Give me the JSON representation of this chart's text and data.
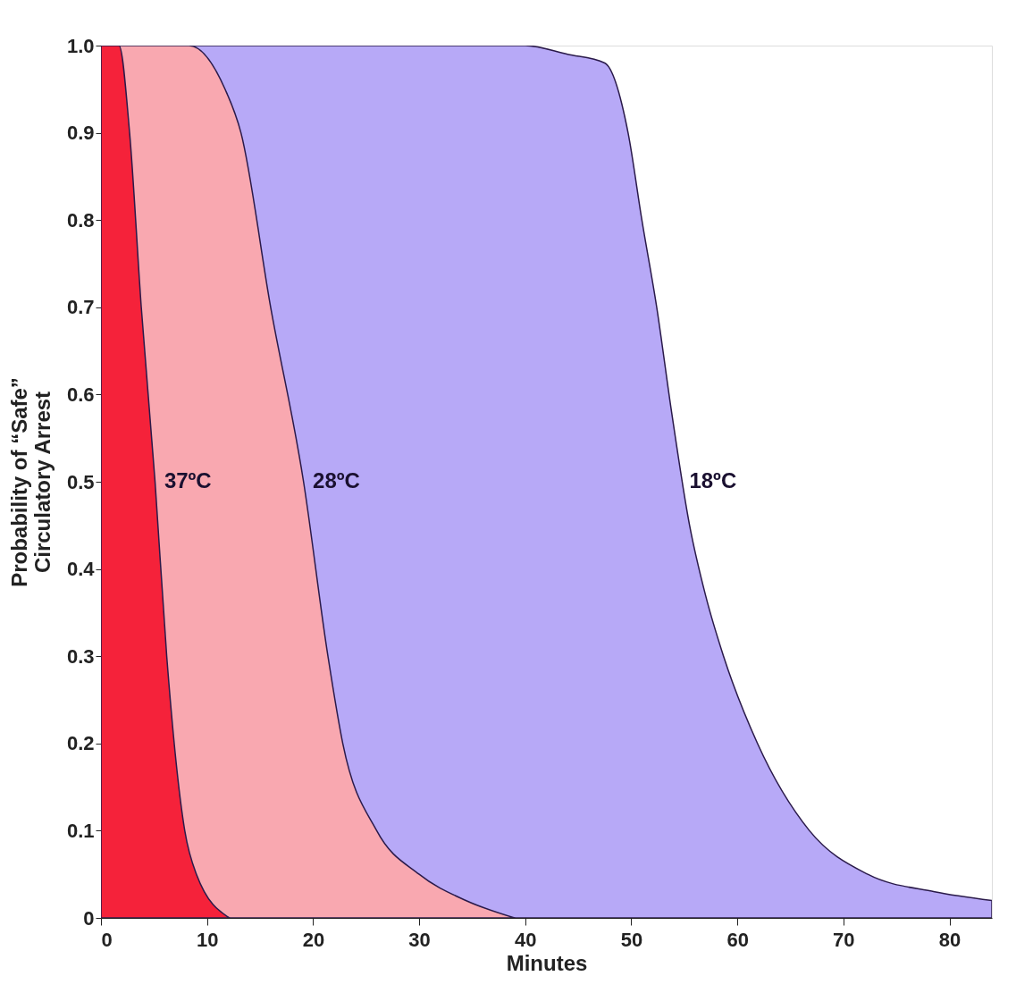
{
  "chart_data": {
    "type": "area",
    "xlabel": "Minutes",
    "ylabel": "Probability of “Safe”\nCirculatory Arrest",
    "xlim": [
      0,
      84
    ],
    "ylim": [
      0,
      1
    ],
    "xticks": [
      0,
      10,
      20,
      30,
      40,
      50,
      60,
      70,
      80
    ],
    "yticks": [
      0,
      0.1,
      0.2,
      0.3,
      0.4,
      0.5,
      0.6,
      0.7,
      0.8,
      0.9,
      {
        "value": 1,
        "label": "1.0"
      }
    ],
    "grid": false,
    "series": [
      {
        "color": "#b7a9f7",
        "x": [
          0,
          40,
          44,
          47.5,
          49.7,
          51,
          52.4,
          53.8,
          55.5,
          57,
          58.7,
          61.9,
          66.8,
          72.3,
          78.6,
          84
        ],
        "values": [
          1,
          1,
          0.99,
          0.98,
          0.9,
          0.8,
          0.7,
          0.58,
          0.45,
          0.37,
          0.3,
          0.2,
          0.1,
          0.05,
          0.03,
          0.02
        ]
      },
      {
        "color": "#f9a8b0",
        "x": [
          0,
          8.3,
          11.7,
          13.2,
          16,
          19.1,
          21.4,
          22.8,
          26,
          30,
          34.4,
          39
        ],
        "values": [
          1,
          1,
          0.95,
          0.9,
          0.7,
          0.5,
          0.3,
          0.2,
          0.1,
          0.05,
          0.02,
          0
        ]
      },
      {
        "color": "#f5223a",
        "x": [
          0,
          1.7,
          2.7,
          3.8,
          5.1,
          6.2,
          7.9,
          9,
          12.1
        ],
        "values": [
          1,
          1,
          0.9,
          0.7,
          0.5,
          0.3,
          0.1,
          0.05,
          0
        ]
      }
    ],
    "annotations": [
      {
        "text": "37ºC",
        "x": 5.3,
        "y": 0.5
      },
      {
        "text": "28ºC",
        "x": 19.3,
        "y": 0.5
      },
      {
        "text": "18ºC",
        "x": 54.8,
        "y": 0.5
      }
    ]
  }
}
